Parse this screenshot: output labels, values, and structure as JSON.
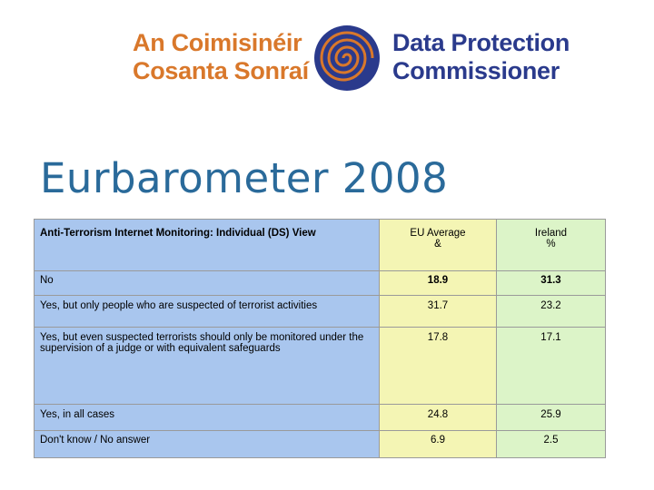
{
  "logo": {
    "irish_line1": "An Coimisinéir",
    "irish_line2": "Cosanta Sonraí",
    "english_line1": "Data Protection",
    "english_line2": "Commissioner",
    "emblem_icon": "spiral-emblem-icon",
    "irish_color": "#d9782b",
    "english_color": "#2a3a8c"
  },
  "title": "Eurbarometer 2008",
  "table": {
    "header": {
      "label": "Anti-Terrorism Internet Monitoring: Individual (DS) View",
      "eu_line1": "EU Average",
      "eu_line2": "&",
      "ireland_line1": "Ireland",
      "ireland_line2": "%"
    },
    "rows": [
      {
        "label": "No",
        "eu": "18.9",
        "ireland": "31.3"
      },
      {
        "label": "Yes, but only people who are suspected of terrorist activities",
        "eu": "31.7",
        "ireland": "23.2"
      },
      {
        "label": "Yes, but even suspected terrorists should only be monitored under the supervision of a judge or with equivalent safeguards",
        "eu": "17.8",
        "ireland": "17.1"
      },
      {
        "label": "Yes, in all cases",
        "eu": "24.8",
        "ireland": "25.9"
      },
      {
        "label": "Don't know / No answer",
        "eu": "6.9",
        "ireland": "2.5"
      }
    ],
    "colors": {
      "label_bg": "#a9c6ee",
      "eu_bg": "#f4f5b4",
      "ireland_bg": "#dcf4c8"
    }
  }
}
